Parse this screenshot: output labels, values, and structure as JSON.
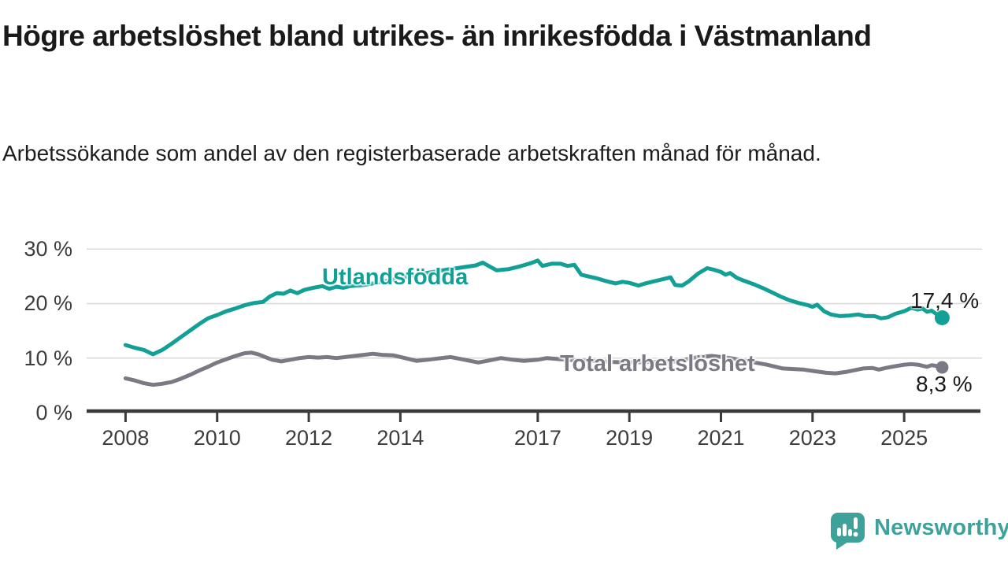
{
  "header": {
    "title": "Högre arbetslöshet bland utrikes- än inrikesfödda i Västmanland",
    "subtitle": "Arbetssökande som andel av den registerbaserade arbetskraften månad för månad."
  },
  "footer": {
    "brand": "Newsworthy",
    "logo_icon": "newsworthy-speech-bubble-bar-chart-icon"
  },
  "colors": {
    "teal_series": "#12a096",
    "gray_series": "#7b7983",
    "gridline": "#d9d9d9",
    "axis": "#3a3a3a",
    "axis_label": "#3d3d3d",
    "logo_teal": "#3ea29a"
  },
  "chart_data": {
    "type": "line",
    "title": "Högre arbetslöshet bland utrikes- än inrikesfödda i Västmanland",
    "subtitle": "Arbetssökande som andel av den registerbaserade arbetskraften månad för månad.",
    "grid": "horizontal",
    "legend_position": "inline-labels",
    "x_axis": {
      "range": [
        2007.15,
        2026.7
      ],
      "ticks": [
        {
          "year": 2008,
          "label": "2008"
        },
        {
          "year": 2010,
          "label": "2010"
        },
        {
          "year": 2012,
          "label": "2012"
        },
        {
          "year": 2014,
          "label": "2014"
        },
        {
          "year": 2017,
          "label": "2017"
        },
        {
          "year": 2019,
          "label": "2019"
        },
        {
          "year": 2021,
          "label": "2021"
        },
        {
          "year": 2023,
          "label": "2023"
        },
        {
          "year": 2025,
          "label": "2025"
        }
      ]
    },
    "y_axis": {
      "range": [
        0,
        30.9
      ],
      "unit": "%",
      "ticks": [
        {
          "value": 0,
          "label": "0 %"
        },
        {
          "value": 10,
          "label": "10 %"
        },
        {
          "value": 20,
          "label": "20 %"
        },
        {
          "value": 30,
          "label": "30 %"
        }
      ]
    },
    "series": [
      {
        "name": "Total arbetslöshet",
        "color": "#7b7983",
        "end_label": "8,3 %",
        "end_value": 8.3,
        "points": [
          [
            2008.0,
            6.3
          ],
          [
            2008.2,
            5.9
          ],
          [
            2008.4,
            5.4
          ],
          [
            2008.6,
            5.1
          ],
          [
            2008.8,
            5.3
          ],
          [
            2009.0,
            5.6
          ],
          [
            2009.2,
            6.2
          ],
          [
            2009.4,
            6.9
          ],
          [
            2009.6,
            7.7
          ],
          [
            2009.8,
            8.4
          ],
          [
            2010.0,
            9.2
          ],
          [
            2010.2,
            9.8
          ],
          [
            2010.4,
            10.4
          ],
          [
            2010.6,
            10.9
          ],
          [
            2010.75,
            11.0
          ],
          [
            2010.9,
            10.7
          ],
          [
            2011.05,
            10.2
          ],
          [
            2011.2,
            9.7
          ],
          [
            2011.4,
            9.4
          ],
          [
            2011.6,
            9.7
          ],
          [
            2011.8,
            10.0
          ],
          [
            2012.0,
            10.2
          ],
          [
            2012.2,
            10.1
          ],
          [
            2012.4,
            10.2
          ],
          [
            2012.6,
            10.0
          ],
          [
            2012.8,
            10.2
          ],
          [
            2013.0,
            10.4
          ],
          [
            2013.2,
            10.6
          ],
          [
            2013.4,
            10.8
          ],
          [
            2013.6,
            10.6
          ],
          [
            2013.85,
            10.5
          ],
          [
            2014.1,
            10.0
          ],
          [
            2014.35,
            9.5
          ],
          [
            2014.6,
            9.7
          ],
          [
            2014.9,
            10.0
          ],
          [
            2015.1,
            10.2
          ],
          [
            2015.4,
            9.7
          ],
          [
            2015.7,
            9.2
          ],
          [
            2015.9,
            9.5
          ],
          [
            2016.2,
            10.0
          ],
          [
            2016.45,
            9.7
          ],
          [
            2016.7,
            9.5
          ],
          [
            2017.0,
            9.7
          ],
          [
            2017.2,
            10.0
          ],
          [
            2017.5,
            9.8
          ],
          [
            2017.8,
            9.6
          ],
          [
            2018.2,
            9.5
          ],
          [
            2018.6,
            9.3
          ],
          [
            2019.0,
            9.2
          ],
          [
            2019.5,
            9.3
          ],
          [
            2020.0,
            9.4
          ],
          [
            2020.5,
            10.2
          ],
          [
            2020.8,
            10.4
          ],
          [
            2021.2,
            10.0
          ],
          [
            2021.6,
            9.4
          ],
          [
            2022.0,
            8.8
          ],
          [
            2022.35,
            8.1
          ],
          [
            2022.8,
            7.9
          ],
          [
            2023.05,
            7.6
          ],
          [
            2023.3,
            7.3
          ],
          [
            2023.5,
            7.2
          ],
          [
            2023.75,
            7.5
          ],
          [
            2024.1,
            8.1
          ],
          [
            2024.3,
            8.2
          ],
          [
            2024.45,
            7.9
          ],
          [
            2024.6,
            8.2
          ],
          [
            2024.8,
            8.5
          ],
          [
            2025.0,
            8.8
          ],
          [
            2025.15,
            8.9
          ],
          [
            2025.3,
            8.8
          ],
          [
            2025.5,
            8.4
          ],
          [
            2025.6,
            8.7
          ],
          [
            2025.75,
            8.5
          ],
          [
            2025.83,
            8.3
          ]
        ]
      },
      {
        "name": "Utlandsfödda",
        "color": "#12a096",
        "end_label": "17,4 %",
        "end_value": 17.4,
        "points": [
          [
            2008.0,
            12.4
          ],
          [
            2008.2,
            11.9
          ],
          [
            2008.4,
            11.5
          ],
          [
            2008.6,
            10.7
          ],
          [
            2008.8,
            11.5
          ],
          [
            2009.0,
            12.6
          ],
          [
            2009.2,
            13.8
          ],
          [
            2009.4,
            15.0
          ],
          [
            2009.6,
            16.2
          ],
          [
            2009.8,
            17.3
          ],
          [
            2010.0,
            17.9
          ],
          [
            2010.2,
            18.6
          ],
          [
            2010.4,
            19.1
          ],
          [
            2010.6,
            19.7
          ],
          [
            2010.8,
            20.1
          ],
          [
            2011.0,
            20.3
          ],
          [
            2011.15,
            21.3
          ],
          [
            2011.3,
            21.9
          ],
          [
            2011.45,
            21.8
          ],
          [
            2011.6,
            22.4
          ],
          [
            2011.75,
            21.9
          ],
          [
            2011.9,
            22.5
          ],
          [
            2012.1,
            22.9
          ],
          [
            2012.3,
            23.2
          ],
          [
            2012.45,
            22.7
          ],
          [
            2012.6,
            23.1
          ],
          [
            2012.75,
            22.9
          ],
          [
            2012.9,
            23.2
          ],
          [
            2013.2,
            23.4
          ],
          [
            2013.6,
            24.0
          ],
          [
            2014.0,
            24.7
          ],
          [
            2014.5,
            25.5
          ],
          [
            2015.0,
            26.2
          ],
          [
            2015.4,
            26.7
          ],
          [
            2015.65,
            27.0
          ],
          [
            2015.8,
            27.5
          ],
          [
            2015.95,
            26.8
          ],
          [
            2016.1,
            26.1
          ],
          [
            2016.35,
            26.3
          ],
          [
            2016.6,
            26.8
          ],
          [
            2016.85,
            27.4
          ],
          [
            2017.0,
            27.9
          ],
          [
            2017.1,
            26.9
          ],
          [
            2017.3,
            27.3
          ],
          [
            2017.5,
            27.3
          ],
          [
            2017.65,
            26.9
          ],
          [
            2017.8,
            27.1
          ],
          [
            2017.95,
            25.3
          ],
          [
            2018.1,
            25.0
          ],
          [
            2018.3,
            24.6
          ],
          [
            2018.5,
            24.1
          ],
          [
            2018.7,
            23.7
          ],
          [
            2018.85,
            24.0
          ],
          [
            2019.0,
            23.8
          ],
          [
            2019.2,
            23.3
          ],
          [
            2019.35,
            23.7
          ],
          [
            2019.55,
            24.1
          ],
          [
            2019.75,
            24.5
          ],
          [
            2019.9,
            24.8
          ],
          [
            2020.0,
            23.4
          ],
          [
            2020.15,
            23.3
          ],
          [
            2020.3,
            24.1
          ],
          [
            2020.5,
            25.5
          ],
          [
            2020.7,
            26.5
          ],
          [
            2020.85,
            26.2
          ],
          [
            2021.0,
            25.8
          ],
          [
            2021.1,
            25.3
          ],
          [
            2021.2,
            25.6
          ],
          [
            2021.35,
            24.7
          ],
          [
            2021.5,
            24.2
          ],
          [
            2021.7,
            23.6
          ],
          [
            2021.9,
            22.9
          ],
          [
            2022.1,
            22.1
          ],
          [
            2022.3,
            21.3
          ],
          [
            2022.5,
            20.6
          ],
          [
            2022.7,
            20.1
          ],
          [
            2022.9,
            19.7
          ],
          [
            2023.0,
            19.4
          ],
          [
            2023.1,
            19.8
          ],
          [
            2023.25,
            18.6
          ],
          [
            2023.4,
            18.0
          ],
          [
            2023.6,
            17.7
          ],
          [
            2023.8,
            17.8
          ],
          [
            2024.0,
            18.0
          ],
          [
            2024.15,
            17.7
          ],
          [
            2024.35,
            17.7
          ],
          [
            2024.5,
            17.3
          ],
          [
            2024.65,
            17.5
          ],
          [
            2024.8,
            18.1
          ],
          [
            2025.0,
            18.6
          ],
          [
            2025.15,
            19.2
          ],
          [
            2025.3,
            18.9
          ],
          [
            2025.4,
            19.1
          ],
          [
            2025.5,
            18.5
          ],
          [
            2025.6,
            18.7
          ],
          [
            2025.7,
            18.1
          ],
          [
            2025.83,
            17.4
          ]
        ]
      }
    ]
  }
}
